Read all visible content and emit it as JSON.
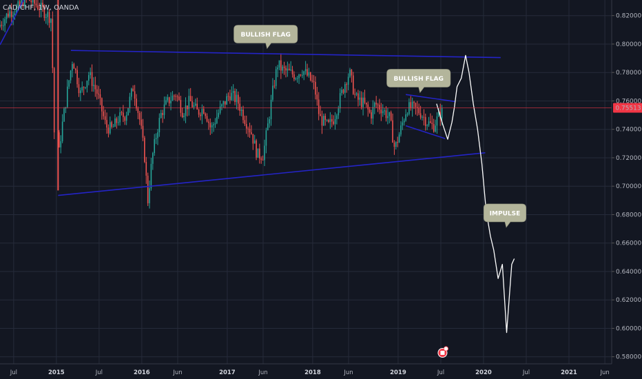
{
  "header": {
    "symbol": "CAD/CHF, 1W, OANDA"
  },
  "colors": {
    "background": "#131722",
    "grid": "#262b3a",
    "up_candle": "#26a69a",
    "down_candle": "#ef5350",
    "trendline": "#2424c8",
    "projection": "#ffffff",
    "current_price": "#f23645",
    "callout_bg": "#b3b59b"
  },
  "chart_data": {
    "type": "candlestick",
    "price_axis": {
      "ticks": [
        "0.82000",
        "0.80000",
        "0.78000",
        "0.76000",
        "0.74000",
        "0.72000",
        "0.70000",
        "0.68000",
        "0.66000",
        "0.64000",
        "0.62000",
        "0.60000",
        "0.58000"
      ],
      "ylim": [
        0.575,
        0.831
      ]
    },
    "current_price": {
      "value": 0.75513,
      "label": "0.75513"
    },
    "time_axis": {
      "labels": [
        {
          "text": "Jul",
          "t": 2014.5,
          "year": false
        },
        {
          "text": "2015",
          "t": 2015.0,
          "year": true
        },
        {
          "text": "Jul",
          "t": 2015.5,
          "year": false
        },
        {
          "text": "2016",
          "t": 2016.0,
          "year": true
        },
        {
          "text": "Jun",
          "t": 2016.42,
          "year": false
        },
        {
          "text": "2017",
          "t": 2017.0,
          "year": true
        },
        {
          "text": "Jun",
          "t": 2017.42,
          "year": false
        },
        {
          "text": "2018",
          "t": 2018.0,
          "year": true
        },
        {
          "text": "Jun",
          "t": 2018.42,
          "year": false
        },
        {
          "text": "2019",
          "t": 2019.0,
          "year": true
        },
        {
          "text": "Jul",
          "t": 2019.5,
          "year": false
        },
        {
          "text": "2020",
          "t": 2020.0,
          "year": true
        },
        {
          "text": "Jul",
          "t": 2020.5,
          "year": false
        },
        {
          "text": "2021",
          "t": 2021.0,
          "year": true
        },
        {
          "text": "Jun",
          "t": 2021.42,
          "year": false
        }
      ],
      "xlim": [
        2014.34,
        2021.5
      ]
    },
    "trendlines": [
      {
        "name": "flag-top-line",
        "from": [
          2015.17,
          0.7955
        ],
        "to": [
          2020.2,
          0.7905
        ]
      },
      {
        "name": "flag-bottom-line",
        "from": [
          2015.02,
          0.6935
        ],
        "to": [
          2020.02,
          0.7235
        ]
      },
      {
        "name": "small-flag-top-line",
        "from": [
          2019.09,
          0.7645
        ],
        "to": [
          2019.67,
          0.7595
        ]
      },
      {
        "name": "small-flag-bottom-line",
        "from": [
          2019.09,
          0.7425
        ],
        "to": [
          2019.55,
          0.7335
        ]
      },
      {
        "name": "early-uptrend-line",
        "from": [
          2014.34,
          0.7995
        ],
        "to": [
          2014.62,
          0.8315
        ]
      }
    ],
    "projection": [
      [
        2019.45,
        0.758
      ],
      [
        2019.52,
        0.744
      ],
      [
        2019.58,
        0.733
      ],
      [
        2019.63,
        0.745
      ],
      [
        2019.66,
        0.756
      ],
      [
        2019.69,
        0.77
      ],
      [
        2019.74,
        0.776
      ],
      [
        2019.79,
        0.792
      ],
      [
        2019.83,
        0.78
      ],
      [
        2019.88,
        0.758
      ],
      [
        2019.93,
        0.74
      ],
      [
        2019.98,
        0.716
      ],
      [
        2020.03,
        0.683
      ],
      [
        2020.08,
        0.665
      ],
      [
        2020.12,
        0.655
      ],
      [
        2020.17,
        0.635
      ],
      [
        2020.22,
        0.645
      ],
      [
        2020.27,
        0.597
      ],
      [
        2020.33,
        0.645
      ],
      [
        2020.36,
        0.649
      ]
    ],
    "callouts": [
      {
        "text": "BULLISH FLAG",
        "t": 2017.45,
        "price": 0.807
      },
      {
        "text": "BULLISH FLAG",
        "t": 2019.24,
        "price": 0.776
      },
      {
        "text": "IMPULSE",
        "t": 2020.25,
        "price": 0.6812
      }
    ],
    "candle_generation": {
      "start": 2015.02,
      "end": 2019.52,
      "anchors": [
        [
          2014.34,
          0.812
        ],
        [
          2014.46,
          0.822
        ],
        [
          2014.58,
          0.826
        ],
        [
          2014.66,
          0.833
        ],
        [
          2014.82,
          0.826
        ],
        [
          2014.96,
          0.818
        ],
        [
          2015.01,
          0.7
        ],
        [
          2015.08,
          0.74
        ],
        [
          2015.16,
          0.772
        ],
        [
          2015.21,
          0.79
        ],
        [
          2015.3,
          0.765
        ],
        [
          2015.4,
          0.779
        ],
        [
          2015.5,
          0.765
        ],
        [
          2015.6,
          0.742
        ],
        [
          2015.67,
          0.74
        ],
        [
          2015.75,
          0.748
        ],
        [
          2015.83,
          0.75
        ],
        [
          2015.92,
          0.77
        ],
        [
          2016.0,
          0.745
        ],
        [
          2016.05,
          0.722
        ],
        [
          2016.09,
          0.69
        ],
        [
          2016.14,
          0.72
        ],
        [
          2016.2,
          0.74
        ],
        [
          2016.25,
          0.752
        ],
        [
          2016.33,
          0.76
        ],
        [
          2016.42,
          0.765
        ],
        [
          2016.5,
          0.752
        ],
        [
          2016.58,
          0.76
        ],
        [
          2016.67,
          0.752
        ],
        [
          2016.75,
          0.755
        ],
        [
          2016.83,
          0.74
        ],
        [
          2016.92,
          0.752
        ],
        [
          2016.98,
          0.758
        ],
        [
          2017.05,
          0.765
        ],
        [
          2017.14,
          0.76
        ],
        [
          2017.22,
          0.748
        ],
        [
          2017.3,
          0.738
        ],
        [
          2017.37,
          0.722
        ],
        [
          2017.44,
          0.722
        ],
        [
          2017.5,
          0.745
        ],
        [
          2017.56,
          0.77
        ],
        [
          2017.61,
          0.786
        ],
        [
          2017.66,
          0.782
        ],
        [
          2017.74,
          0.78
        ],
        [
          2017.82,
          0.778
        ],
        [
          2017.9,
          0.782
        ],
        [
          2017.98,
          0.776
        ],
        [
          2018.04,
          0.77
        ],
        [
          2018.1,
          0.748
        ],
        [
          2018.2,
          0.742
        ],
        [
          2018.27,
          0.748
        ],
        [
          2018.33,
          0.76
        ],
        [
          2018.41,
          0.775
        ],
        [
          2018.45,
          0.78
        ],
        [
          2018.52,
          0.762
        ],
        [
          2018.62,
          0.758
        ],
        [
          2018.7,
          0.75
        ],
        [
          2018.75,
          0.758
        ],
        [
          2018.82,
          0.755
        ],
        [
          2018.92,
          0.748
        ],
        [
          2018.98,
          0.726
        ],
        [
          2019.05,
          0.74
        ],
        [
          2019.12,
          0.755
        ],
        [
          2019.2,
          0.755
        ],
        [
          2019.28,
          0.752
        ],
        [
          2019.36,
          0.745
        ],
        [
          2019.43,
          0.742
        ],
        [
          2019.52,
          0.752
        ]
      ]
    }
  }
}
